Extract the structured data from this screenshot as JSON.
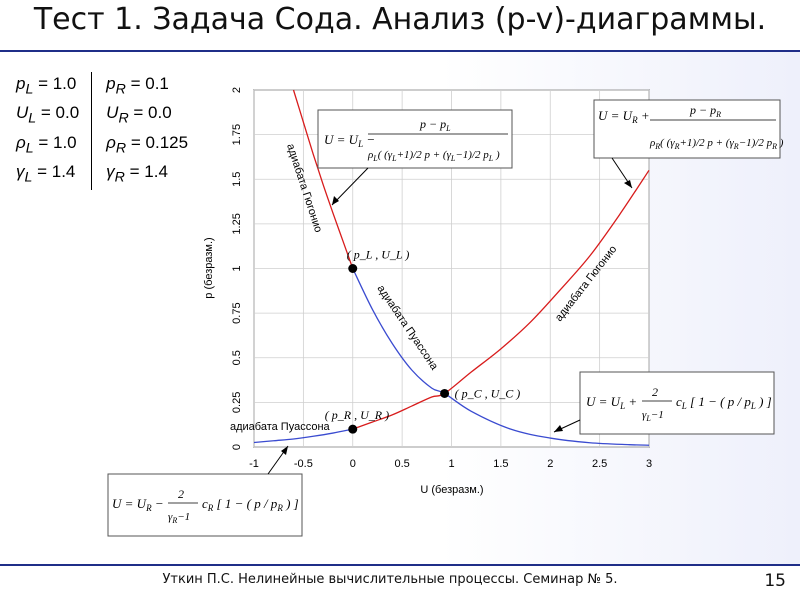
{
  "page": {
    "title": "Тест 1. Задача Сода. Анализ (p-v)-диаграммы.",
    "footer": "Уткин П.С. Нелинейные вычислительные процессы. Семинар № 5.",
    "page_number": "15"
  },
  "params": {
    "left": [
      [
        "p",
        "L",
        " = 1.0"
      ],
      [
        "U",
        "L",
        " = 0.0"
      ],
      [
        "ρ",
        "L",
        " = 1.0"
      ],
      [
        "γ",
        "L",
        " = 1.4"
      ]
    ],
    "right": [
      [
        "p",
        "R",
        " = 0.1"
      ],
      [
        "U",
        "R",
        " = 0.0"
      ],
      [
        "ρ",
        "R",
        " = 0.125"
      ],
      [
        "γ",
        "R",
        " = 1.4"
      ]
    ]
  },
  "colors": {
    "rule": "#1f2e88",
    "hugoniot": "#d81c1c",
    "poisson": "#3a4bd0"
  },
  "chart_data": {
    "type": "line",
    "xlabel": "U (безразм.)",
    "ylabel": "p (безразм.)",
    "xlim": [
      -1,
      3
    ],
    "ylim": [
      0,
      2
    ],
    "xticks": [
      "-1",
      "-0.5",
      "0",
      "0.5",
      "1",
      "1.5",
      "2",
      "2.5",
      "3"
    ],
    "yticks": [
      "0",
      "0.25",
      "0.5",
      "0.75",
      "1",
      "1.25",
      "1.5",
      "1.75",
      "2"
    ],
    "grid": true,
    "series": [
      {
        "name": "адиабата Гюгонио",
        "side": "L",
        "color": "#d81c1c",
        "x": [
          -0.6,
          -0.5,
          -0.4,
          -0.3,
          -0.2,
          -0.1,
          0.0
        ],
        "y": [
          2.0,
          1.82,
          1.64,
          1.47,
          1.31,
          1.155,
          1.0
        ]
      },
      {
        "name": "адиабата Пуассона",
        "side": "L",
        "color": "#3a4bd0",
        "x": [
          0.0,
          0.2,
          0.4,
          0.6,
          0.8,
          0.93,
          1.2,
          1.6,
          2.0,
          2.4,
          2.8,
          3.0
        ],
        "y": [
          1.0,
          0.77,
          0.58,
          0.43,
          0.33,
          0.3,
          0.2,
          0.1,
          0.05,
          0.024,
          0.013,
          0.01
        ]
      },
      {
        "name": "адиабата Пуассона",
        "side": "R",
        "color": "#3a4bd0",
        "x": [
          -1.0,
          -0.8,
          -0.6,
          -0.4,
          -0.2,
          0.0
        ],
        "y": [
          0.025,
          0.035,
          0.045,
          0.06,
          0.078,
          0.1
        ]
      },
      {
        "name": "адиабата Гюгонио",
        "side": "R",
        "color": "#d81c1c",
        "x": [
          0.0,
          0.2,
          0.4,
          0.6,
          0.8,
          0.93,
          1.2,
          1.5,
          1.8,
          2.1,
          2.4,
          2.7,
          3.0
        ],
        "y": [
          0.1,
          0.14,
          0.18,
          0.23,
          0.28,
          0.3,
          0.42,
          0.55,
          0.7,
          0.88,
          1.07,
          1.3,
          1.55
        ]
      }
    ],
    "points": [
      {
        "label": "( p_L , U_L )",
        "x": 0.0,
        "y": 1.0
      },
      {
        "label": "( p_R , U_R )",
        "x": 0.0,
        "y": 0.1
      },
      {
        "label": "( p_C , U_C )",
        "x": 0.93,
        "y": 0.3
      }
    ],
    "annotations": [
      {
        "text": "адиабата Гюгонио"
      },
      {
        "text": "адиабата Пуассона"
      },
      {
        "text": "адиабата Гюгонио"
      },
      {
        "text": "адиабата Пуассона"
      }
    ]
  }
}
